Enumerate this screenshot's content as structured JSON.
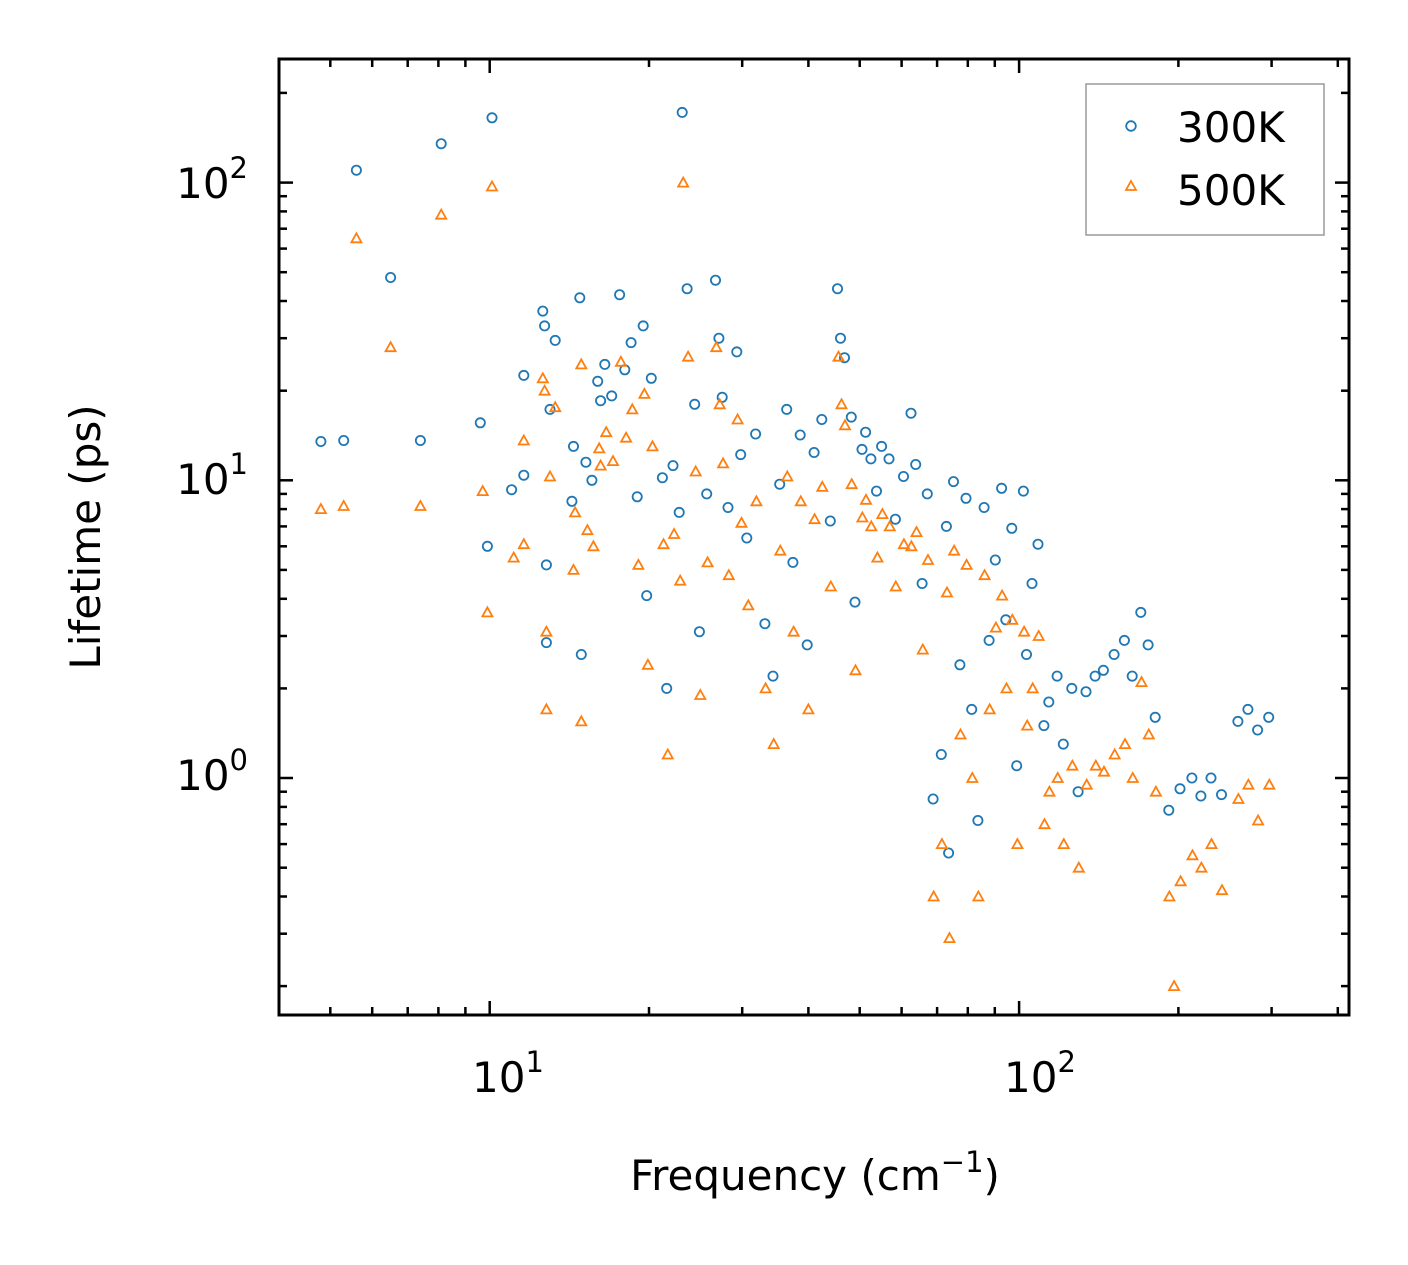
{
  "chart_data": {
    "type": "scatter",
    "xscale": "log",
    "yscale": "log",
    "xlabel": "Frequency (cm",
    "xlabel_sup": "−1",
    "xlabel_end": ")",
    "ylabel": "Lifetime (ps)",
    "xlim": [
      4.0,
      420
    ],
    "ylim": [
      0.16,
      260
    ],
    "xticks": [
      {
        "value": 10,
        "base": "10",
        "exp": "1"
      },
      {
        "value": 100,
        "base": "10",
        "exp": "2"
      }
    ],
    "yticks": [
      {
        "value": 1,
        "base": "10",
        "exp": "0"
      },
      {
        "value": 10,
        "base": "10",
        "exp": "1"
      },
      {
        "value": 100,
        "base": "10",
        "exp": "2"
      }
    ],
    "legend": {
      "position": "top-right",
      "entries": [
        {
          "name": "300K",
          "marker": "circle",
          "color": "#1f77b4"
        },
        {
          "name": "500K",
          "marker": "triangle",
          "color": "#ff7f0e"
        }
      ]
    },
    "series": [
      {
        "name": "300K",
        "marker": "circle",
        "color": "#1f77b4",
        "points": [
          [
            4.8,
            13.5
          ],
          [
            5.3,
            13.6
          ],
          [
            5.6,
            110
          ],
          [
            6.5,
            48
          ],
          [
            7.4,
            13.6
          ],
          [
            8.1,
            135
          ],
          [
            9.6,
            15.6
          ],
          [
            9.9,
            6.0
          ],
          [
            10.1,
            165
          ],
          [
            11.0,
            9.3
          ],
          [
            11.6,
            10.4
          ],
          [
            11.6,
            22.5
          ],
          [
            12.6,
            37
          ],
          [
            12.7,
            33
          ],
          [
            12.8,
            5.2
          ],
          [
            12.8,
            2.85
          ],
          [
            13.0,
            17.3
          ],
          [
            13.3,
            29.5
          ],
          [
            14.3,
            8.5
          ],
          [
            14.4,
            13.0
          ],
          [
            14.8,
            41
          ],
          [
            14.9,
            2.6
          ],
          [
            15.2,
            11.5
          ],
          [
            15.6,
            10.0
          ],
          [
            16.0,
            21.5
          ],
          [
            16.2,
            18.5
          ],
          [
            16.5,
            24.5
          ],
          [
            17.0,
            19.2
          ],
          [
            17.6,
            42
          ],
          [
            18.0,
            23.5
          ],
          [
            18.5,
            29
          ],
          [
            19.0,
            8.8
          ],
          [
            19.5,
            33
          ],
          [
            19.8,
            4.1
          ],
          [
            20.2,
            22
          ],
          [
            21.2,
            10.2
          ],
          [
            21.6,
            2.0
          ],
          [
            22.2,
            11.2
          ],
          [
            22.8,
            7.8
          ],
          [
            23.1,
            172
          ],
          [
            23.6,
            44
          ],
          [
            24.4,
            18
          ],
          [
            24.9,
            3.1
          ],
          [
            25.7,
            9.0
          ],
          [
            26.7,
            47
          ],
          [
            27.1,
            30
          ],
          [
            27.5,
            19
          ],
          [
            28.2,
            8.1
          ],
          [
            29.3,
            27
          ],
          [
            29.8,
            12.2
          ],
          [
            30.6,
            6.4
          ],
          [
            31.8,
            14.3
          ],
          [
            33.1,
            3.3
          ],
          [
            34.3,
            2.2
          ],
          [
            35.3,
            9.7
          ],
          [
            36.4,
            17.3
          ],
          [
            37.4,
            5.3
          ],
          [
            38.6,
            14.2
          ],
          [
            39.8,
            2.8
          ],
          [
            41.0,
            12.4
          ],
          [
            42.4,
            16.0
          ],
          [
            44.0,
            7.3
          ],
          [
            45.4,
            44
          ],
          [
            46.0,
            30
          ],
          [
            46.8,
            25.8
          ],
          [
            48.2,
            16.3
          ],
          [
            49.0,
            3.9
          ],
          [
            50.5,
            12.7
          ],
          [
            51.3,
            14.5
          ],
          [
            52.5,
            11.8
          ],
          [
            53.8,
            9.2
          ],
          [
            55.0,
            13.0
          ],
          [
            56.8,
            11.8
          ],
          [
            58.4,
            7.4
          ],
          [
            60.5,
            10.3
          ],
          [
            62.5,
            16.8
          ],
          [
            63.8,
            11.3
          ],
          [
            65.6,
            4.5
          ],
          [
            67.1,
            9.0
          ],
          [
            68.8,
            0.85
          ],
          [
            71.3,
            1.2
          ],
          [
            72.9,
            7.0
          ],
          [
            73.6,
            0.56
          ],
          [
            75.2,
            9.9
          ],
          [
            77.3,
            2.4
          ],
          [
            79.4,
            8.7
          ],
          [
            81.4,
            1.7
          ],
          [
            83.6,
            0.72
          ],
          [
            85.9,
            8.1
          ],
          [
            87.8,
            2.9
          ],
          [
            90.2,
            5.4
          ],
          [
            92.7,
            9.4
          ],
          [
            94.4,
            3.4
          ],
          [
            96.9,
            6.9
          ],
          [
            99.0,
            1.1
          ],
          [
            101.9,
            9.2
          ],
          [
            103.3,
            2.6
          ],
          [
            105.8,
            4.5
          ],
          [
            108.6,
            6.1
          ],
          [
            111.4,
            1.5
          ],
          [
            113.8,
            1.8
          ],
          [
            118.0,
            2.2
          ],
          [
            121.2,
            1.3
          ],
          [
            125.8,
            2.0
          ],
          [
            129.3,
            0.9
          ],
          [
            133.8,
            1.95
          ],
          [
            139.2,
            2.2
          ],
          [
            144.3,
            2.3
          ],
          [
            151.2,
            2.6
          ],
          [
            158.1,
            2.9
          ],
          [
            163.6,
            2.2
          ],
          [
            169.8,
            3.6
          ],
          [
            175.3,
            2.8
          ],
          [
            180.8,
            1.6
          ],
          [
            191.8,
            0.78
          ],
          [
            201.4,
            0.92
          ],
          [
            212.1,
            1.0
          ],
          [
            220.5,
            0.87
          ],
          [
            230.4,
            1.0
          ],
          [
            241.2,
            0.88
          ],
          [
            259.0,
            1.55
          ],
          [
            270.6,
            1.7
          ],
          [
            282.2,
            1.45
          ],
          [
            296.2,
            1.6
          ]
        ]
      },
      {
        "name": "500K",
        "marker": "triangle",
        "color": "#ff7f0e",
        "points": [
          [
            4.8,
            8.0
          ],
          [
            5.3,
            8.2
          ],
          [
            5.6,
            65
          ],
          [
            6.5,
            28
          ],
          [
            7.4,
            8.2
          ],
          [
            8.1,
            78
          ],
          [
            9.7,
            9.2
          ],
          [
            9.9,
            3.6
          ],
          [
            10.1,
            97
          ],
          [
            11.1,
            5.5
          ],
          [
            11.6,
            6.1
          ],
          [
            11.6,
            13.6
          ],
          [
            12.6,
            22
          ],
          [
            12.7,
            20
          ],
          [
            12.8,
            3.1
          ],
          [
            12.8,
            1.7
          ],
          [
            13.0,
            10.3
          ],
          [
            13.3,
            17.6
          ],
          [
            14.4,
            5.0
          ],
          [
            14.5,
            7.8
          ],
          [
            14.9,
            24.5
          ],
          [
            14.9,
            1.55
          ],
          [
            15.3,
            6.8
          ],
          [
            15.7,
            6.0
          ],
          [
            16.1,
            12.8
          ],
          [
            16.2,
            11.2
          ],
          [
            16.6,
            14.5
          ],
          [
            17.1,
            11.6
          ],
          [
            17.7,
            25
          ],
          [
            18.1,
            13.9
          ],
          [
            18.6,
            17.3
          ],
          [
            19.1,
            5.2
          ],
          [
            19.6,
            19.5
          ],
          [
            19.9,
            2.4
          ],
          [
            20.3,
            13.0
          ],
          [
            21.3,
            6.1
          ],
          [
            21.7,
            1.2
          ],
          [
            22.3,
            6.6
          ],
          [
            22.9,
            4.6
          ],
          [
            23.2,
            100
          ],
          [
            23.7,
            26
          ],
          [
            24.5,
            10.7
          ],
          [
            25.0,
            1.9
          ],
          [
            25.8,
            5.3
          ],
          [
            26.8,
            28
          ],
          [
            27.2,
            18
          ],
          [
            27.6,
            11.4
          ],
          [
            28.3,
            4.8
          ],
          [
            29.4,
            16.0
          ],
          [
            29.9,
            7.2
          ],
          [
            30.8,
            3.8
          ],
          [
            31.9,
            8.5
          ],
          [
            33.2,
            2.0
          ],
          [
            34.4,
            1.3
          ],
          [
            35.4,
            5.8
          ],
          [
            36.5,
            10.3
          ],
          [
            37.5,
            3.1
          ],
          [
            38.7,
            8.5
          ],
          [
            40.0,
            1.7
          ],
          [
            41.1,
            7.4
          ],
          [
            42.5,
            9.5
          ],
          [
            44.1,
            4.4
          ],
          [
            45.6,
            26
          ],
          [
            46.2,
            18
          ],
          [
            46.9,
            15.3
          ],
          [
            48.3,
            9.7
          ],
          [
            49.1,
            2.3
          ],
          [
            50.6,
            7.5
          ],
          [
            51.4,
            8.6
          ],
          [
            52.6,
            7.0
          ],
          [
            54.0,
            5.5
          ],
          [
            55.2,
            7.7
          ],
          [
            57.0,
            7.0
          ],
          [
            58.5,
            4.4
          ],
          [
            60.6,
            6.1
          ],
          [
            62.6,
            6.0
          ],
          [
            64.0,
            6.7
          ],
          [
            65.8,
            2.7
          ],
          [
            67.3,
            5.4
          ],
          [
            69.0,
            0.4
          ],
          [
            71.5,
            0.6
          ],
          [
            73.1,
            4.2
          ],
          [
            73.9,
            0.29
          ],
          [
            75.4,
            5.8
          ],
          [
            77.5,
            1.4
          ],
          [
            79.6,
            5.2
          ],
          [
            81.6,
            1.0
          ],
          [
            83.8,
            0.4
          ],
          [
            86.1,
            4.8
          ],
          [
            88.0,
            1.7
          ],
          [
            90.4,
            3.2
          ],
          [
            92.9,
            4.1
          ],
          [
            94.7,
            2.0
          ],
          [
            97.1,
            3.4
          ],
          [
            99.3,
            0.6
          ],
          [
            102.2,
            3.1
          ],
          [
            103.6,
            1.5
          ],
          [
            106.1,
            2.0
          ],
          [
            108.9,
            3.0
          ],
          [
            111.7,
            0.7
          ],
          [
            114.1,
            0.9
          ],
          [
            118.3,
            1.0
          ],
          [
            121.5,
            0.6
          ],
          [
            126.1,
            1.1
          ],
          [
            129.7,
            0.5
          ],
          [
            134.2,
            0.95
          ],
          [
            139.6,
            1.1
          ],
          [
            144.7,
            1.05
          ],
          [
            151.6,
            1.2
          ],
          [
            158.5,
            1.3
          ],
          [
            164.0,
            1.0
          ],
          [
            170.3,
            2.1
          ],
          [
            175.8,
            1.4
          ],
          [
            181.3,
            0.9
          ],
          [
            192.3,
            0.4
          ],
          [
            196.3,
            0.2
          ],
          [
            201.9,
            0.45
          ],
          [
            212.6,
            0.55
          ],
          [
            221.0,
            0.5
          ],
          [
            230.9,
            0.6
          ],
          [
            241.7,
            0.42
          ],
          [
            259.6,
            0.85
          ],
          [
            271.2,
            0.95
          ],
          [
            282.9,
            0.72
          ],
          [
            296.9,
            0.95
          ]
        ]
      }
    ]
  }
}
